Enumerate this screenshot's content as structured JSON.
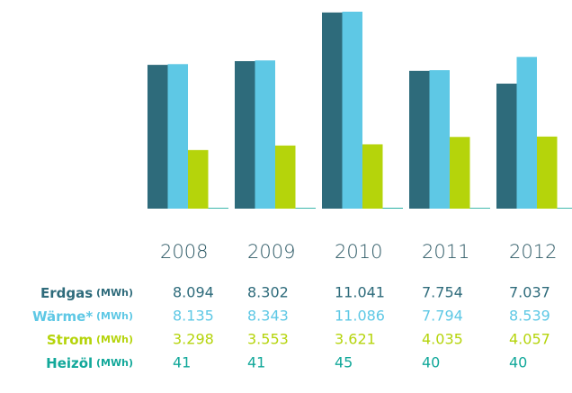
{
  "chart_data": {
    "type": "bar",
    "categories": [
      "2008",
      "2009",
      "2010",
      "2011",
      "2012"
    ],
    "unit": "(MWh)",
    "series": [
      {
        "name": "Erdgas",
        "color": "#2e6b7b",
        "values": [
          8094,
          8302,
          11041,
          7754,
          7037
        ],
        "value_labels": [
          "8.094",
          "8.302",
          "11.041",
          "7.754",
          "7.037"
        ]
      },
      {
        "name": "Wärme*",
        "color": "#5ec8e5",
        "values": [
          8135,
          8343,
          11086,
          7794,
          8539
        ],
        "value_labels": [
          "8.135",
          "8.343",
          "11.086",
          "7.794",
          "8.539"
        ]
      },
      {
        "name": "Strom",
        "color": "#b5d40b",
        "values": [
          3298,
          3553,
          3621,
          4035,
          4057
        ],
        "value_labels": [
          "3.298",
          "3.553",
          "3.621",
          "4.035",
          "4.057"
        ]
      },
      {
        "name": "Heizöl",
        "color": "#12a89a",
        "values": [
          41,
          41,
          45,
          40,
          40
        ]
      }
    ],
    "ylim": [
      0,
      11086
    ]
  }
}
